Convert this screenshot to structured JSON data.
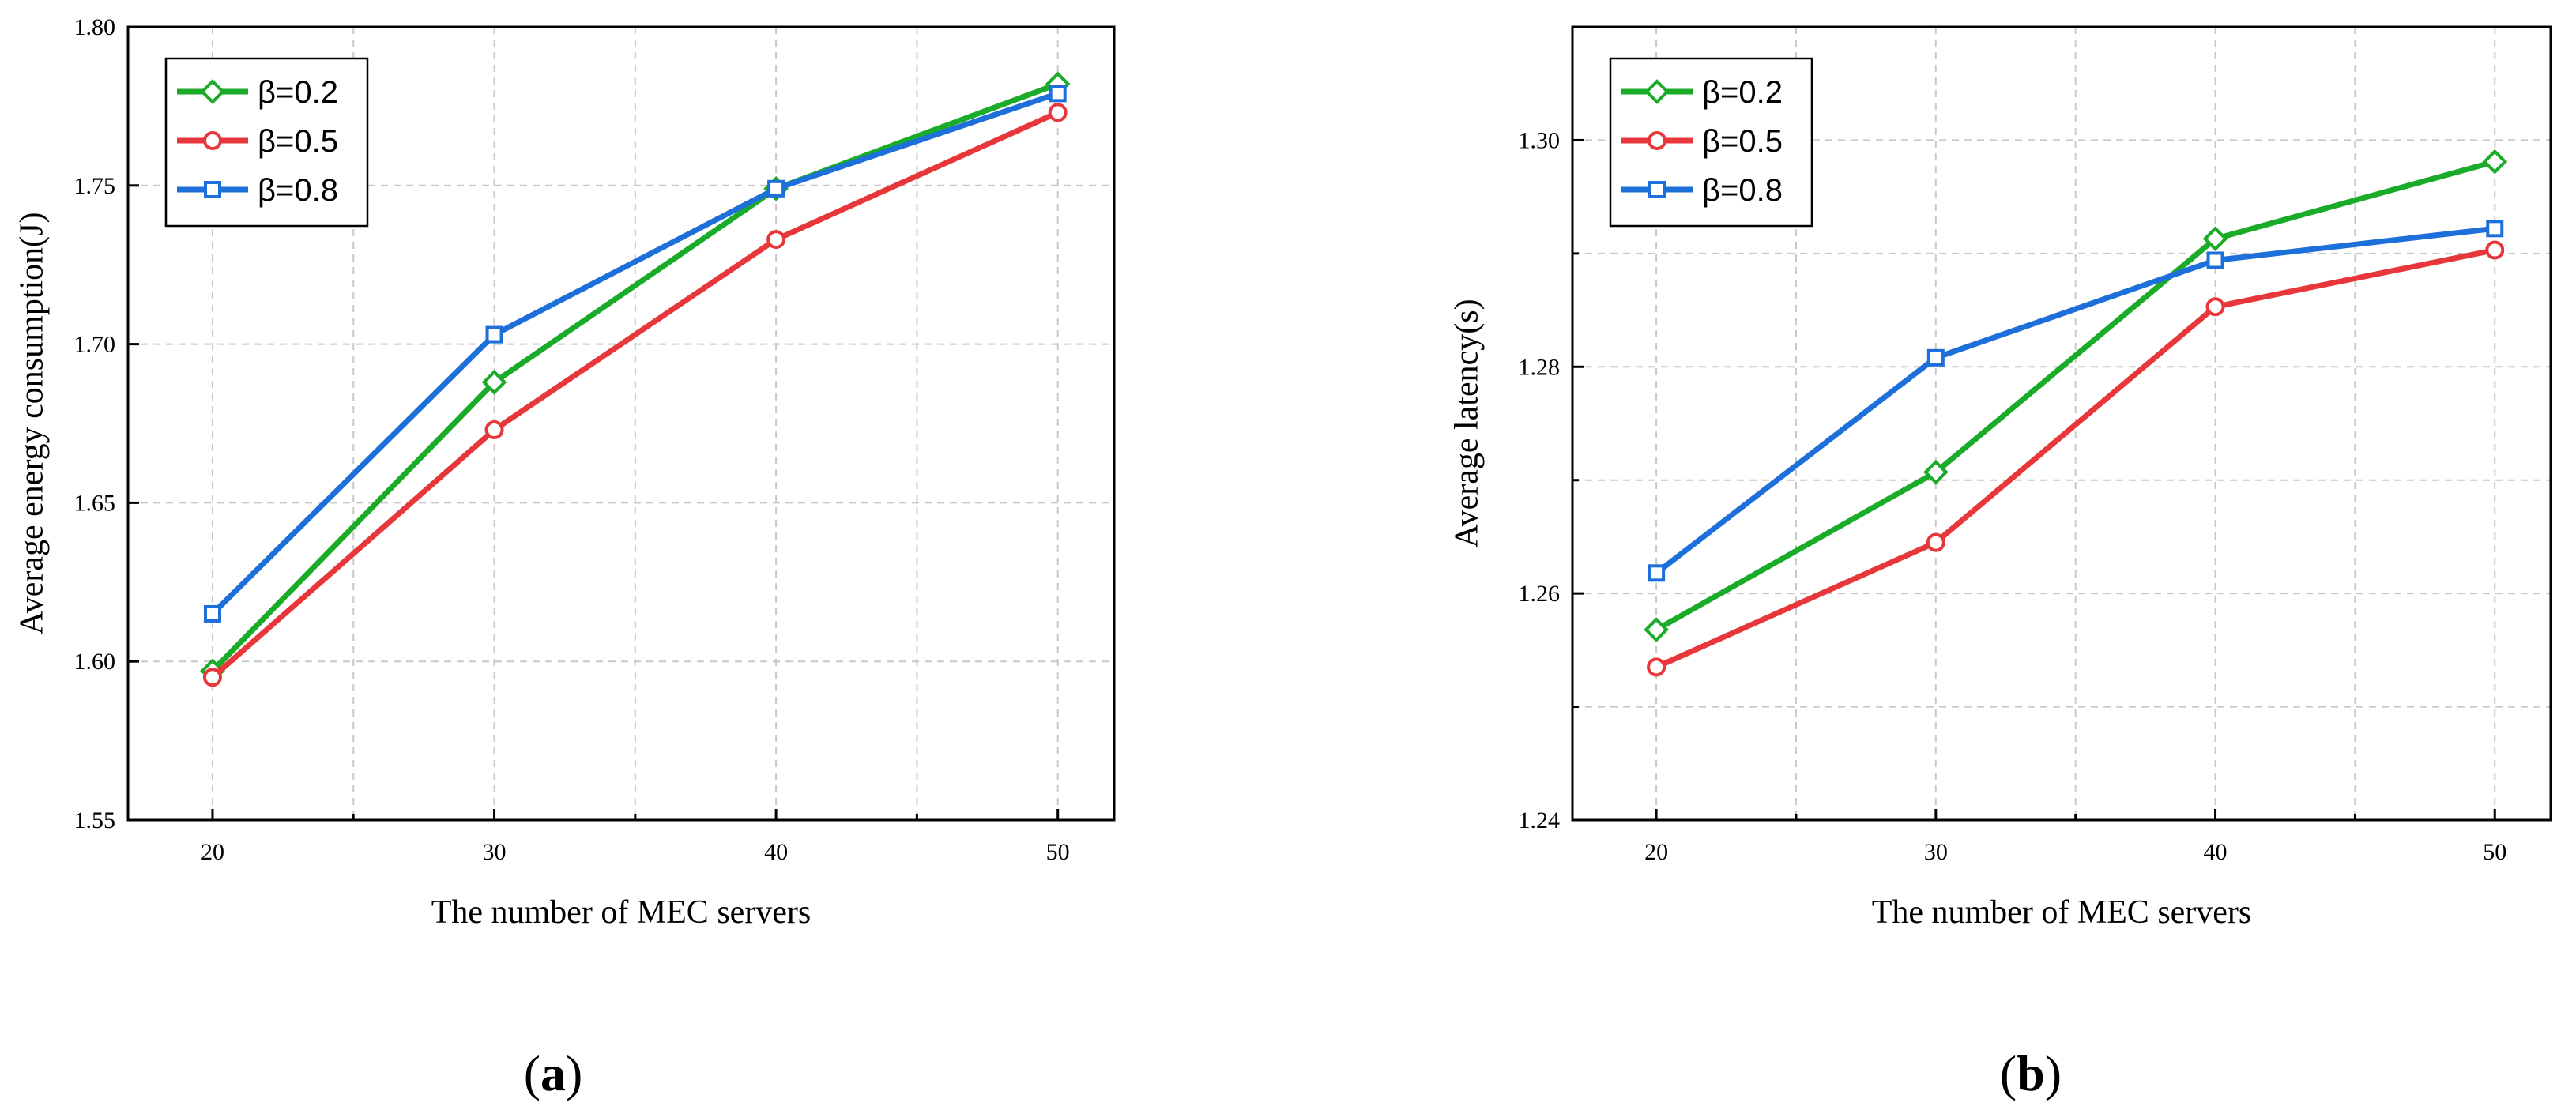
{
  "colors": {
    "series_0": "#1aab28",
    "series_1": "#e8373b",
    "series_2": "#1d6fd9"
  },
  "chart_data": [
    {
      "type": "line",
      "subcaption": "a",
      "title": "",
      "xlabel": "The number of MEC servers",
      "ylabel": "Average energy consumption(J)",
      "xlim": [
        17,
        52
      ],
      "ylim": [
        1.55,
        1.8
      ],
      "xticks": [
        20,
        30,
        40,
        50
      ],
      "xtick_labels": [
        "20",
        "30",
        "40",
        "50"
      ],
      "xminor": [
        25,
        35,
        45
      ],
      "yticks": [
        1.55,
        1.6,
        1.65,
        1.7,
        1.75,
        1.8
      ],
      "ytick_labels": [
        "1.55",
        "1.60",
        "1.65",
        "1.70",
        "1.75",
        "1.80"
      ],
      "grid": true,
      "legend_position": "top-left",
      "x": [
        20,
        30,
        40,
        50
      ],
      "series": [
        {
          "name": "β=0.2",
          "marker": "diamond",
          "values": [
            1.597,
            1.688,
            1.749,
            1.782
          ]
        },
        {
          "name": "β=0.5",
          "marker": "circle",
          "values": [
            1.595,
            1.673,
            1.733,
            1.773
          ]
        },
        {
          "name": "β=0.8",
          "marker": "square",
          "values": [
            1.615,
            1.703,
            1.749,
            1.779
          ]
        }
      ]
    },
    {
      "type": "line",
      "subcaption": "b",
      "title": "",
      "xlabel": "The number of MEC servers",
      "ylabel": "Average latency(s)",
      "xlim": [
        17,
        52
      ],
      "ylim": [
        1.24,
        1.31
      ],
      "xticks": [
        20,
        30,
        40,
        50
      ],
      "xtick_labels": [
        "20",
        "30",
        "40",
        "50"
      ],
      "xminor": [
        25,
        35,
        45
      ],
      "yticks": [
        1.24,
        1.26,
        1.28,
        1.3
      ],
      "ytick_labels": [
        "1.24",
        "1.26",
        "1.28",
        "1.30"
      ],
      "yminor": [
        1.25,
        1.27,
        1.29
      ],
      "grid": true,
      "legend_position": "top-left",
      "x": [
        20,
        30,
        40,
        50
      ],
      "series": [
        {
          "name": "β=0.2",
          "marker": "diamond",
          "values": [
            1.2568,
            1.2707,
            1.2913,
            1.2981
          ]
        },
        {
          "name": "β=0.5",
          "marker": "circle",
          "values": [
            1.2535,
            1.2645,
            1.2853,
            1.2903
          ]
        },
        {
          "name": "β=0.8",
          "marker": "square",
          "values": [
            1.2618,
            1.2808,
            1.2894,
            1.2922
          ]
        }
      ]
    }
  ]
}
